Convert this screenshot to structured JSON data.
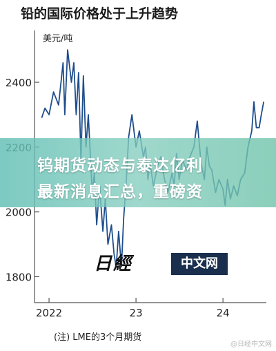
{
  "chart_data": {
    "type": "line",
    "title": "铅的国际价格处于上升趋势",
    "ylabel": "美元/吨",
    "note": "(注) LME的3个月期货",
    "ylim": [
      1720,
      2560
    ],
    "yticks": [
      1800,
      2000,
      2200,
      2400
    ],
    "xlim": [
      "2021-11-01",
      "2024-07-01"
    ],
    "xticks": [
      {
        "label": "2022",
        "date": "2022-01-01"
      },
      {
        "label": "23",
        "date": "2023-01-01"
      },
      {
        "label": "24",
        "date": "2024-01-01"
      }
    ],
    "grid": false,
    "series": [
      {
        "color": "#1f4e8c",
        "points": [
          [
            "2021-12-01",
            2290
          ],
          [
            "2021-12-15",
            2320
          ],
          [
            "2022-01-01",
            2300
          ],
          [
            "2022-01-20",
            2370
          ],
          [
            "2022-02-10",
            2330
          ],
          [
            "2022-03-01",
            2460
          ],
          [
            "2022-03-08",
            2300
          ],
          [
            "2022-03-20",
            2500
          ],
          [
            "2022-04-05",
            2400
          ],
          [
            "2022-04-15",
            2460
          ],
          [
            "2022-04-25",
            2300
          ],
          [
            "2022-05-05",
            2430
          ],
          [
            "2022-05-15",
            2160
          ],
          [
            "2022-05-25",
            2420
          ],
          [
            "2022-06-05",
            2200
          ],
          [
            "2022-06-15",
            2300
          ],
          [
            "2022-07-01",
            2060
          ],
          [
            "2022-07-10",
            2120
          ],
          [
            "2022-07-20",
            1960
          ],
          [
            "2022-08-01",
            2080
          ],
          [
            "2022-08-15",
            1940
          ],
          [
            "2022-08-25",
            2040
          ],
          [
            "2022-09-05",
            1900
          ],
          [
            "2022-09-20",
            1960
          ],
          [
            "2022-10-01",
            1870
          ],
          [
            "2022-10-10",
            1830
          ],
          [
            "2022-10-20",
            1940
          ],
          [
            "2022-11-01",
            1830
          ],
          [
            "2022-11-10",
            1980
          ],
          [
            "2022-11-20",
            2080
          ],
          [
            "2022-12-01",
            2230
          ],
          [
            "2022-12-15",
            2300
          ],
          [
            "2023-01-01",
            2200
          ],
          [
            "2023-01-15",
            2250
          ],
          [
            "2023-02-01",
            2170
          ],
          [
            "2023-02-10",
            2200
          ],
          [
            "2023-02-20",
            2100
          ],
          [
            "2023-03-01",
            2150
          ],
          [
            "2023-03-15",
            2080
          ],
          [
            "2023-04-01",
            2140
          ],
          [
            "2023-04-15",
            2170
          ],
          [
            "2023-05-01",
            2100
          ],
          [
            "2023-05-15",
            2060
          ],
          [
            "2023-06-01",
            2120
          ],
          [
            "2023-06-10",
            2080
          ],
          [
            "2023-06-20",
            2180
          ],
          [
            "2023-07-01",
            2100
          ],
          [
            "2023-07-15",
            2160
          ],
          [
            "2023-08-01",
            2130
          ],
          [
            "2023-08-15",
            2170
          ],
          [
            "2023-09-01",
            2200
          ],
          [
            "2023-09-15",
            2280
          ],
          [
            "2023-10-01",
            2150
          ],
          [
            "2023-10-15",
            2100
          ],
          [
            "2023-10-25",
            2200
          ],
          [
            "2023-11-05",
            2140
          ],
          [
            "2023-11-15",
            2130
          ],
          [
            "2023-12-01",
            2060
          ],
          [
            "2023-12-15",
            2100
          ],
          [
            "2024-01-01",
            2070
          ],
          [
            "2024-01-10",
            2020
          ],
          [
            "2024-01-20",
            2100
          ],
          [
            "2024-02-01",
            2040
          ],
          [
            "2024-02-15",
            2080
          ],
          [
            "2024-03-01",
            2050
          ],
          [
            "2024-03-15",
            2100
          ],
          [
            "2024-04-01",
            2120
          ],
          [
            "2024-04-15",
            2200
          ],
          [
            "2024-05-01",
            2250
          ],
          [
            "2024-05-10",
            2340
          ],
          [
            "2024-05-20",
            2260
          ],
          [
            "2024-06-01",
            2260
          ],
          [
            "2024-06-10",
            2300
          ],
          [
            "2024-06-20",
            2340
          ]
        ]
      }
    ]
  },
  "overlay": {
    "line1": "钨期货动态与泰达亿利",
    "line2": "最新消息汇总，重磅资"
  },
  "logo": {
    "kanji": "日經",
    "box_label": "中文网"
  },
  "watermark": "@日经中文网"
}
